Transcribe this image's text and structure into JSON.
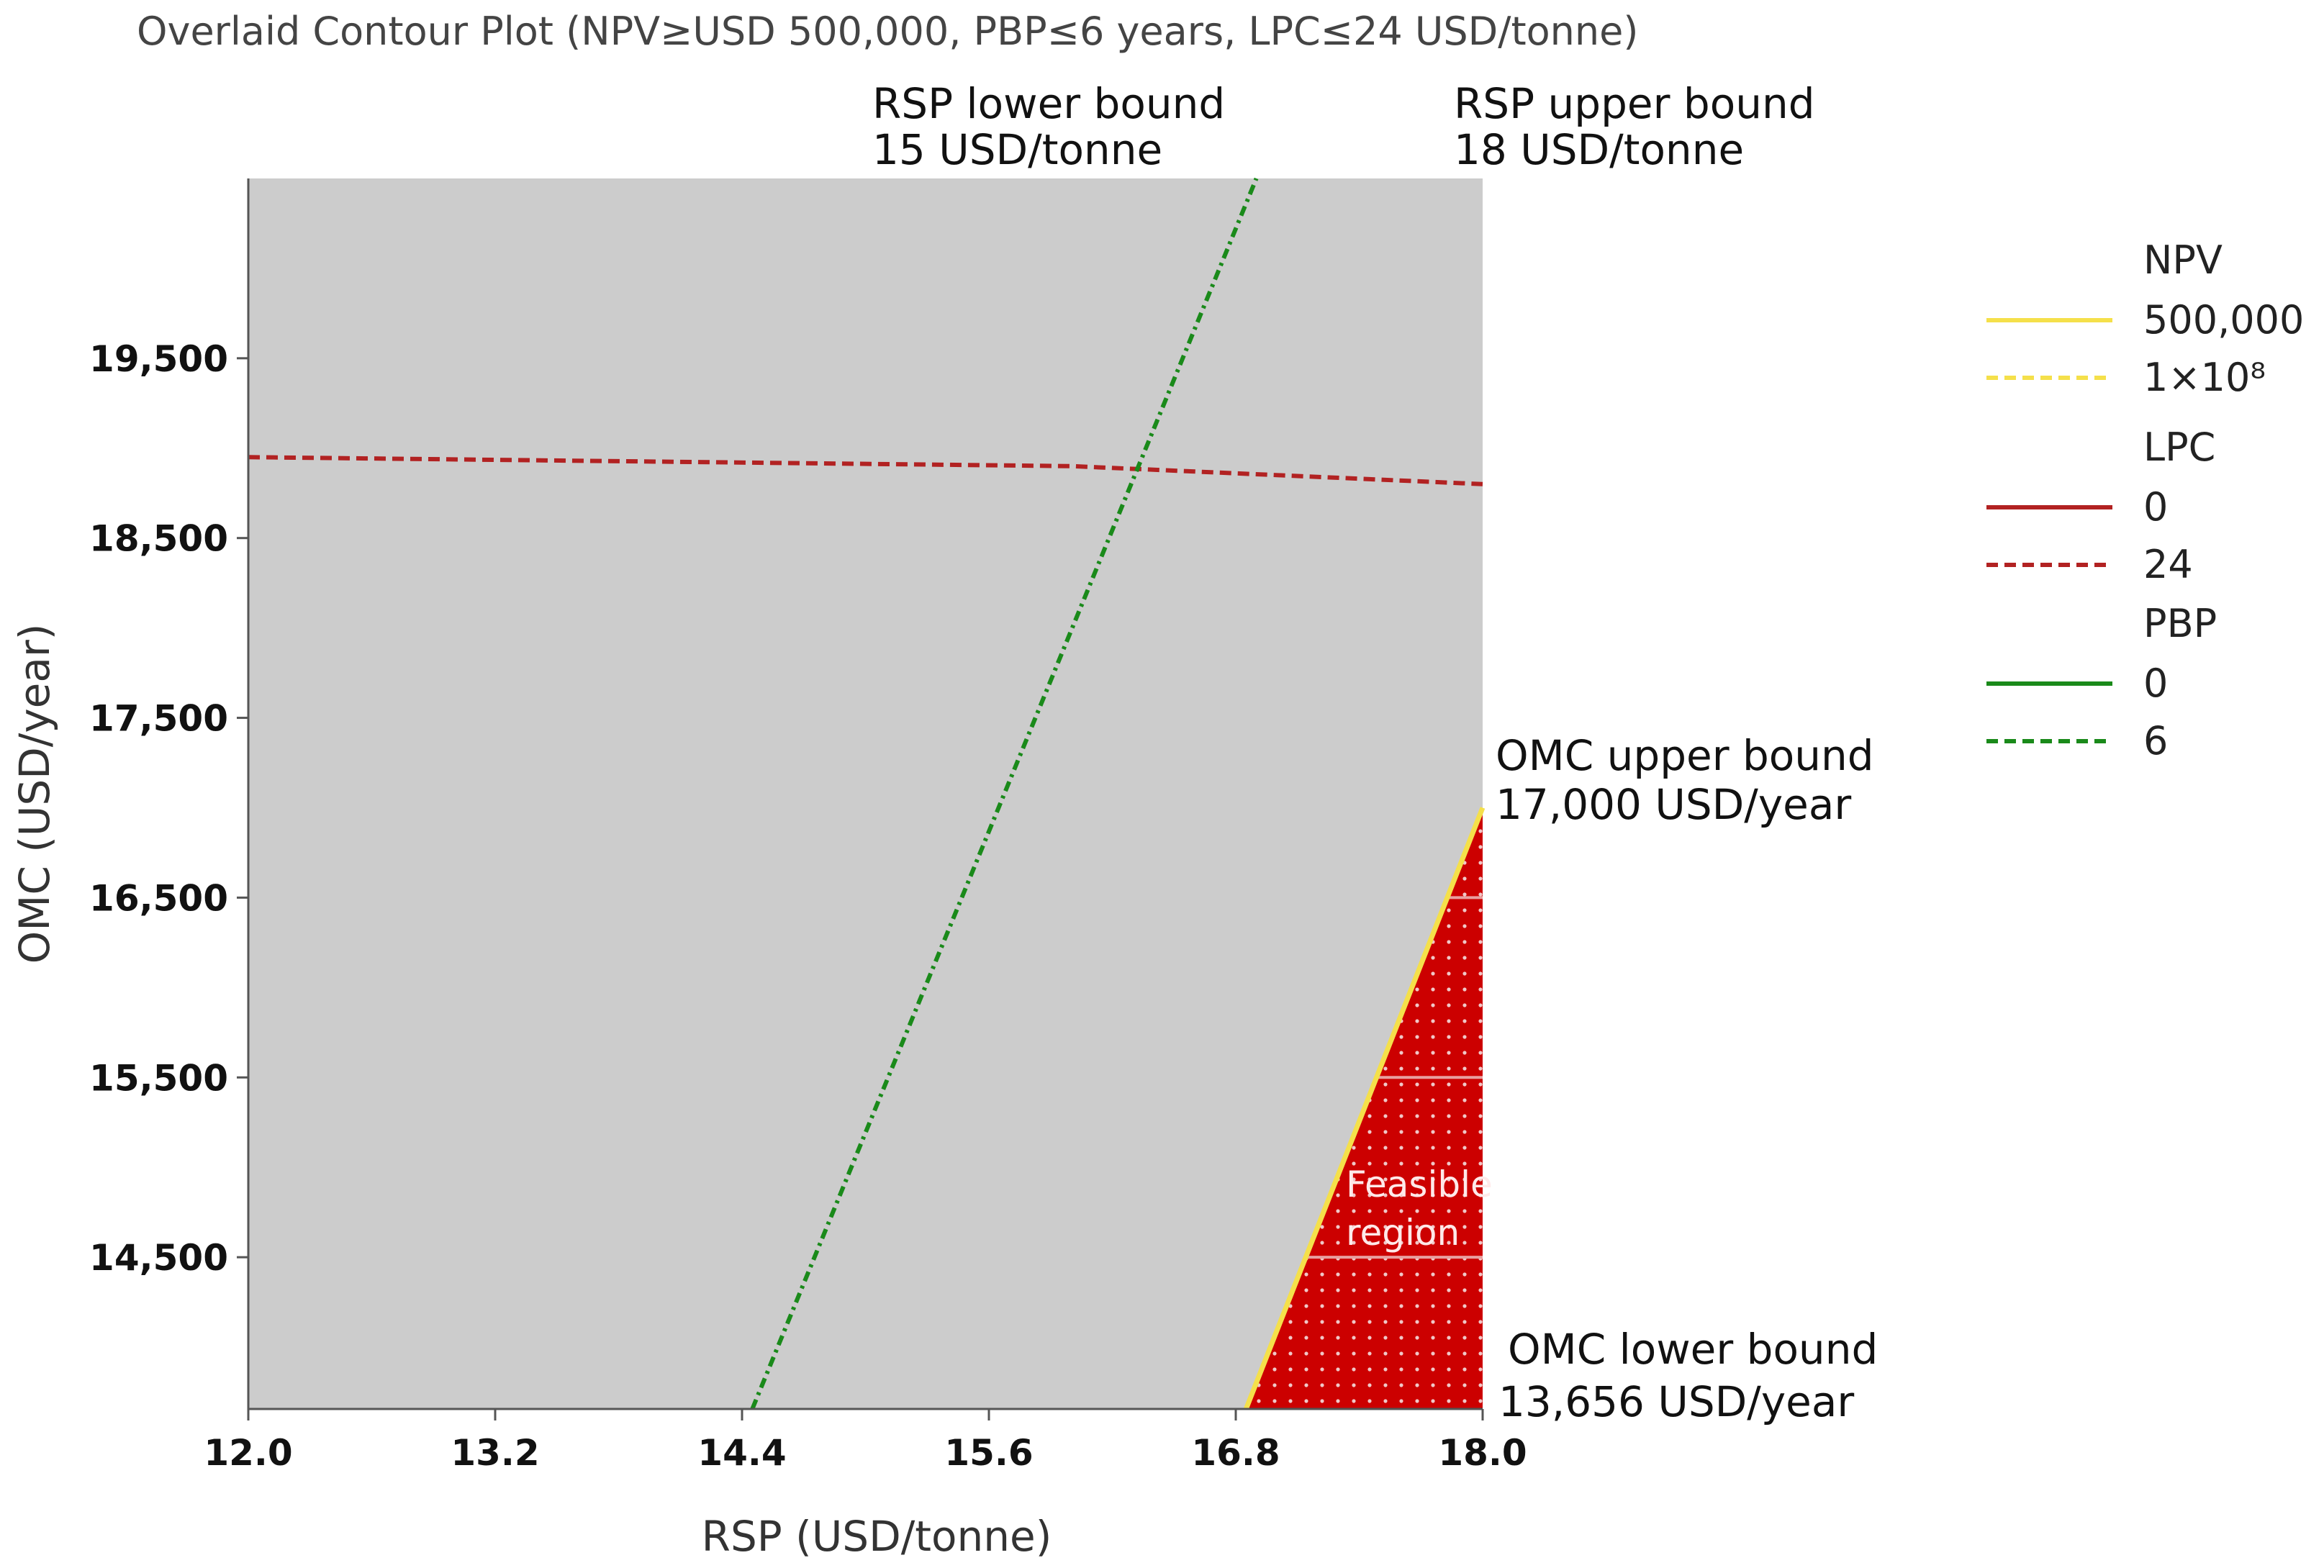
{
  "chart_data": {
    "type": "contour",
    "title": "Overlaid Contour Plot (NPV≥USD 500,000, PBP≤6 years, LPC≤24 USD/tonne)",
    "xlabel": "RSP (USD/tonne)",
    "ylabel": "OMC (USD/year)",
    "xlim": [
      12.0,
      18.0
    ],
    "ylim": [
      13656,
      20500
    ],
    "x_ticks": [
      "12.0",
      "13.2",
      "14.4",
      "15.6",
      "16.8",
      "18.0"
    ],
    "y_ticks": [
      "19,500",
      "18,500",
      "17,500",
      "16,500",
      "15,500",
      "14,500"
    ],
    "x_tick_values": [
      12.0,
      13.2,
      14.4,
      15.6,
      16.8,
      18.0
    ],
    "y_tick_values": [
      19500,
      18500,
      17500,
      16500,
      15500,
      14500
    ],
    "background_color": "#cccccc",
    "feasible_color": "#cc0000",
    "series": [
      {
        "name": "NPV",
        "color": "#f5e04a",
        "levels": [
          "500,000",
          "1×10⁸"
        ],
        "lines": [
          {
            "level": "500,000",
            "style": "solid",
            "points": [
              [
                16.85,
                13656
              ],
              [
                18.0,
                17000
              ]
            ]
          }
        ]
      },
      {
        "name": "LPC",
        "color": "#b22222",
        "levels": [
          "0",
          "24"
        ],
        "lines": [
          {
            "level": "24",
            "style": "dashed",
            "points": [
              [
                12.0,
                18950
              ],
              [
                16.0,
                18900
              ],
              [
                18.0,
                18800
              ]
            ]
          }
        ]
      },
      {
        "name": "PBP",
        "color": "#1a8a1a",
        "levels": [
          "0",
          "6"
        ],
        "lines": [
          {
            "level": "6",
            "style": "dashed",
            "points": [
              [
                14.45,
                13656
              ],
              [
                16.9,
                20500
              ]
            ]
          }
        ]
      }
    ],
    "feasible_region": {
      "label_line1": "Feasible",
      "label_line2": "region",
      "polygon": [
        [
          16.85,
          13656
        ],
        [
          18.0,
          17000
        ],
        [
          18.0,
          13656
        ]
      ]
    },
    "annotations": {
      "rsp_lower_line1": "RSP lower bound",
      "rsp_lower_line2": "15 USD/tonne",
      "rsp_upper_line1": "RSP upper bound",
      "rsp_upper_line2": "18 USD/tonne",
      "omc_upper_line1": "OMC upper bound",
      "omc_upper_line2": "17,000 USD/year",
      "omc_lower_line1": "OMC lower bound",
      "omc_lower_line2": "13,656 USD/year"
    },
    "legend_placement": "right",
    "grid": false
  }
}
